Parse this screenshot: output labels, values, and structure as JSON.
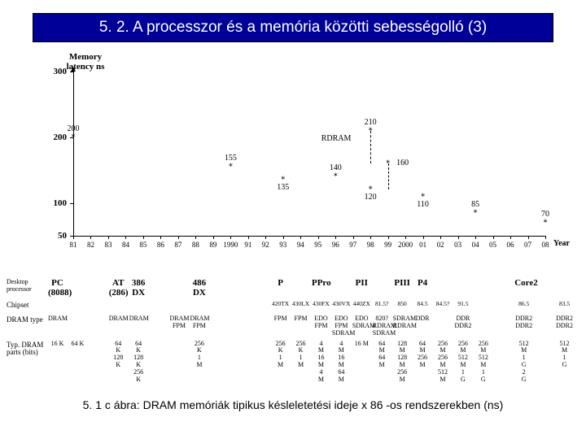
{
  "title": "5. 2. A processzor és a memória közötti sebességolló (3)",
  "caption": "5. 1 c ábra: DRAM memóriák tipikus késleletetési ideje x 86 -os rendszerekben (ns)",
  "chart": {
    "type": "scatter",
    "y_label": "Memory latency ns",
    "x_label": "Year",
    "ylim": [
      50,
      300
    ],
    "ytick_step": 50,
    "y_ticks": [
      50,
      100,
      200,
      300
    ],
    "x_categories": [
      "81",
      "82",
      "83",
      "84",
      "85",
      "86",
      "87",
      "88",
      "89",
      "1990",
      "91",
      "92",
      "93",
      "94",
      "95",
      "96",
      "97",
      "98",
      "99",
      "2000",
      "01",
      "02",
      "03",
      "04",
      "05",
      "06",
      "07",
      "08"
    ],
    "points_main": [
      {
        "xi": 0,
        "y": 200,
        "label": "200",
        "lp": "above"
      },
      {
        "xi": 9,
        "y": 155,
        "label": "155",
        "lp": "above"
      },
      {
        "xi": 12,
        "y": 135,
        "label": "135",
        "lp": "below"
      },
      {
        "xi": 15,
        "y": 140,
        "label": "140",
        "lp": "above"
      },
      {
        "xi": 17,
        "y": 120,
        "label": "120",
        "lp": "below"
      },
      {
        "xi": 20,
        "y": 110,
        "label": "110",
        "lp": "below"
      },
      {
        "xi": 23,
        "y": 85,
        "label": "85",
        "lp": "above"
      },
      {
        "xi": 27,
        "y": 70,
        "label": "70",
        "lp": "above"
      }
    ],
    "points_rdram": [
      {
        "xi": 17,
        "y": 210,
        "label": "210",
        "lp": "above"
      },
      {
        "xi": 18,
        "y": 160,
        "label": "160",
        "lp": "right"
      }
    ],
    "rdram_label": "RDRAM",
    "axis_color": "#000000",
    "marker": "*",
    "marker_size": 10
  },
  "table": {
    "rows": [
      {
        "header": "Desktop processor",
        "class": "proc-row",
        "cells": [
          "PC (8088)",
          "",
          "",
          "AT (286)",
          "386 DX",
          "",
          "",
          "486 DX",
          "",
          "",
          "",
          "P",
          "",
          "PPro",
          "",
          "PII",
          "",
          "PIII",
          "P4",
          "",
          "",
          "",
          "",
          "Core2",
          "",
          ""
        ]
      },
      {
        "header": "Chipset",
        "class": "chipset-row",
        "cells": [
          "",
          "",
          "",
          "",
          "",
          "",
          "",
          "",
          "",
          "",
          "",
          "420TX",
          "430LX",
          "430FX",
          "430VX",
          "440ZX",
          "81.5?",
          "850",
          "84.5",
          "84.5?",
          "91.5",
          "",
          "",
          "86.5",
          "",
          "83.5"
        ]
      },
      {
        "header": "DRAM type",
        "class": "dram-row",
        "cells": [
          "DRAM",
          "",
          "",
          "DRAM",
          "DRAM",
          "",
          "DRAM FPM",
          "DRAM FPM",
          "",
          "",
          "",
          "FPM",
          "FPM",
          "EDO FPM",
          "EDO FPM SDRAM",
          "EDO SDRAM",
          "820? RDRAM SDRAM",
          "SDRAM RDRAM",
          "DDR",
          "",
          "DDR DDR2",
          "",
          "",
          "DDR2 DDR2",
          "",
          "DDR2 DDR2"
        ]
      },
      {
        "header": "Typ. DRAM parts (bits)",
        "class": "parts-row",
        "cells": [
          "16 K",
          "64 K",
          "",
          "64 K 128 K",
          "64 K 128 K 256 K",
          "",
          "",
          "256 K 1 M",
          "",
          "",
          "",
          "256 K 1 M",
          "256 K 1 M",
          "4 M 16 M 4 M",
          "4 M 16 M 64 M",
          "16 M",
          "64 M 64 M",
          "128 M 128 M 256 M",
          "64 M 256 M",
          "256 M 256 M 512 M",
          "256 M 512 M 1 G",
          "256 M 512 M 1 G",
          "",
          "512 M 1 G 2 G",
          "",
          "512 M 1 G"
        ]
      }
    ]
  }
}
